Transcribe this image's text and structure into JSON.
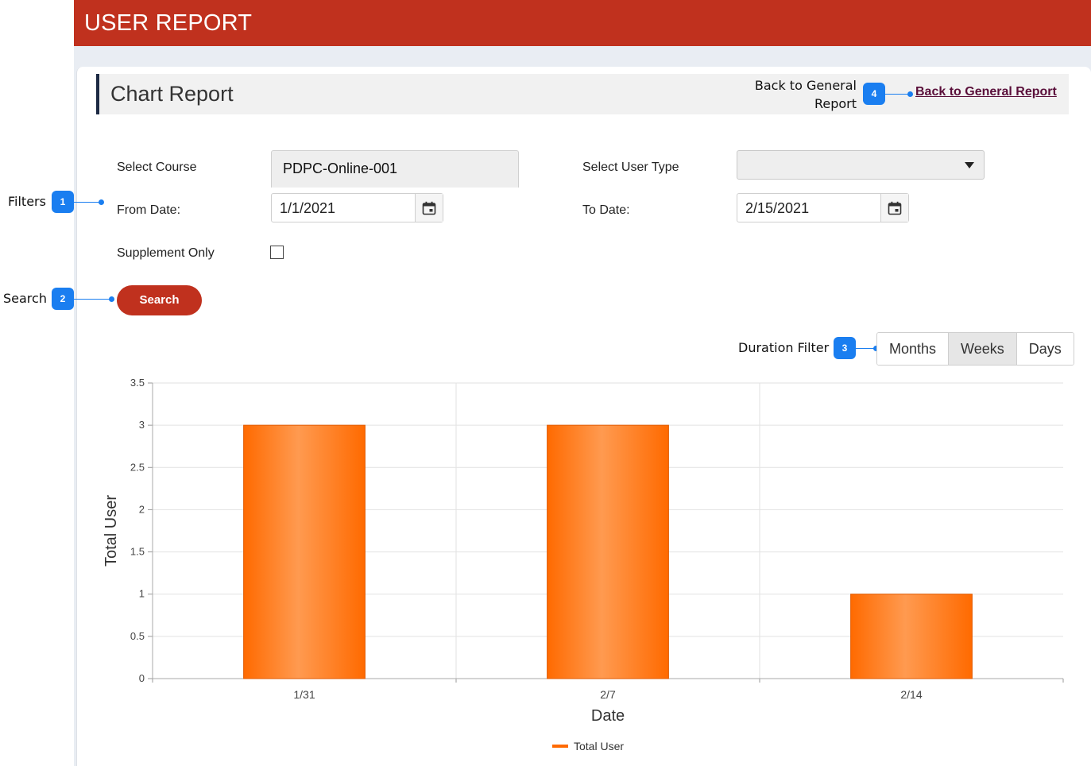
{
  "header": {
    "title": "USER REPORT"
  },
  "section": {
    "title": "Chart Report",
    "back_text": "Back to General Report",
    "back_link": "Back to General Report"
  },
  "form": {
    "course_label": "Select Course",
    "course_value": "PDPC-Online-001",
    "user_type_label": "Select User Type",
    "user_type_value": "",
    "from_label": "From Date:",
    "from_value": "1/1/2021",
    "to_label": "To Date:",
    "to_value": "2/15/2021",
    "supplement_label": "Supplement Only",
    "supplement_checked": false,
    "search_label": "Search"
  },
  "duration": {
    "label": "Duration Filter",
    "options": [
      "Months",
      "Weeks",
      "Days"
    ],
    "selected": "Weeks"
  },
  "annotations": {
    "filters": {
      "label": "Filters",
      "number": "1"
    },
    "search": {
      "label": "Search",
      "number": "2"
    },
    "duration": {
      "number": "3"
    },
    "back": {
      "number": "4"
    }
  },
  "colors": {
    "brand": "#c0311e",
    "bar": "#ff6a00",
    "badge": "#1a7ef0",
    "link": "#5a0f3a"
  },
  "chart_data": {
    "type": "bar",
    "categories": [
      "1/31",
      "2/7",
      "2/14"
    ],
    "series": [
      {
        "name": "Total User",
        "values": [
          3,
          3,
          1
        ]
      }
    ],
    "xlabel": "Date",
    "ylabel": "Total User",
    "ylim": [
      0,
      3.5
    ],
    "yticks": [
      "0",
      "0.5",
      "1",
      "1.5",
      "2",
      "2.5",
      "3",
      "3.5"
    ],
    "grid": true,
    "legend": "bottom-center"
  }
}
